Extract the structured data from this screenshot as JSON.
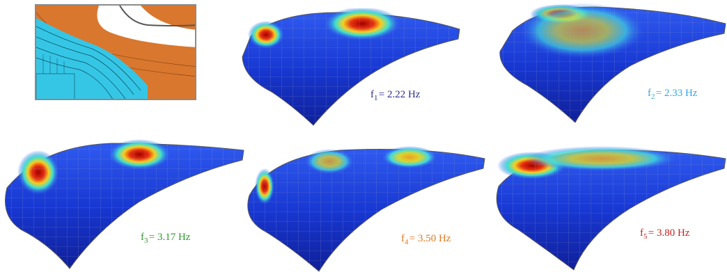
{
  "labels": [
    {
      "sym": "f",
      "sub": "1",
      "value": "= 2.22 Hz",
      "color": "#2a2f8a"
    },
    {
      "sym": "f",
      "sub": "2",
      "value": "= 2.33 Hz",
      "color": "#2fa8e0"
    },
    {
      "sym": "f",
      "sub": "3",
      "value": "= 3.17 Hz",
      "color": "#2e9a2e"
    },
    {
      "sym": "f",
      "sub": "4",
      "value": "= 3.50 Hz",
      "color": "#e07820"
    },
    {
      "sym": "f",
      "sub": "5",
      "value": "= 3.80 Hz",
      "color": "#c81e1e"
    }
  ],
  "colors": {
    "shell_blue": "#1a3fd6",
    "hot_red": "#b10f0f",
    "inset_cyan": "#35c6e6",
    "inset_orange": "#d9772e"
  }
}
